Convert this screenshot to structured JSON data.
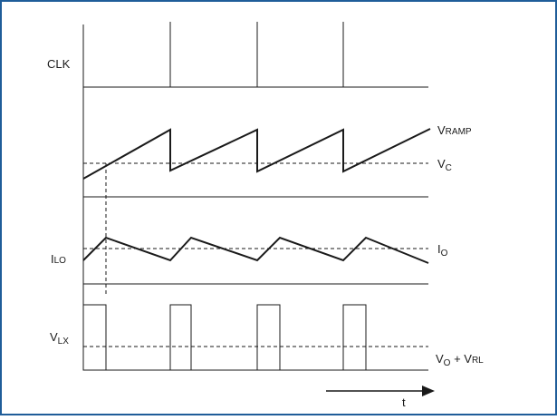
{
  "diagram": {
    "signals": {
      "clk": {
        "label": "CLK"
      },
      "ramp": {
        "label_main": "V",
        "label_sub": "RAMP"
      },
      "vc": {
        "label_main": "V",
        "label_sub": "C"
      },
      "ilo": {
        "label_main": "I",
        "label_sub": "LO"
      },
      "io": {
        "label_main": "I",
        "label_sub": "O"
      },
      "vlx": {
        "label_main": "V",
        "label_sub": "LX"
      },
      "vo_vrl": {
        "label_main_1": "V",
        "label_sub_1": "O",
        "label_plus": " + V",
        "label_sub_2": "RL"
      }
    },
    "time_axis": {
      "label": "t"
    },
    "colors": {
      "border": "#1f5d99",
      "stroke": "#1a1a1a",
      "background": "#ffffff"
    }
  }
}
